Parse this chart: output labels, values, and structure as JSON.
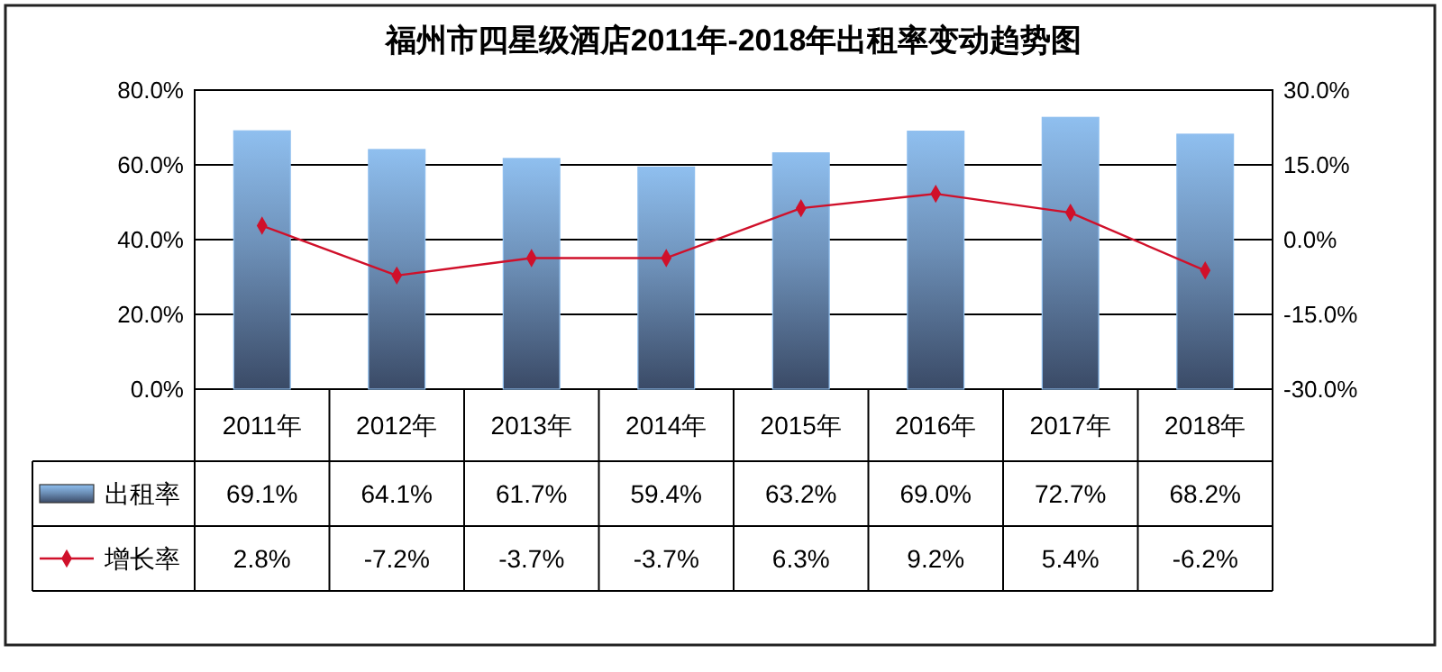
{
  "chart_data": {
    "type": "bar",
    "title": "福州市四星级酒店2011年-2018年出租率变动趋势图",
    "categories": [
      "2011年",
      "2012年",
      "2013年",
      "2014年",
      "2015年",
      "2016年",
      "2017年",
      "2018年"
    ],
    "series": [
      {
        "name": "出租率",
        "color": "#8fbfef",
        "values": [
          69.1,
          64.1,
          61.7,
          59.4,
          63.2,
          69.0,
          72.7,
          68.2
        ],
        "value_labels": [
          "69.1%",
          "64.1%",
          "61.7%",
          "59.4%",
          "63.2%",
          "69.0%",
          "72.7%",
          "68.2%"
        ]
      },
      {
        "name": "增长率",
        "type": "line",
        "axis": "y2",
        "color": "#d0102a",
        "marker": "diamond",
        "values": [
          2.8,
          -7.2,
          -3.7,
          -3.7,
          6.3,
          9.2,
          5.4,
          -6.2
        ],
        "value_labels": [
          "2.8%",
          "-7.2%",
          "-3.7%",
          "-3.7%",
          "6.3%",
          "9.2%",
          "5.4%",
          "-6.2%"
        ]
      }
    ],
    "ylim": [
      0,
      80
    ],
    "yticks": [
      {
        "value": 0,
        "label": "0.0%"
      },
      {
        "value": 20,
        "label": "20.0%"
      },
      {
        "value": 40,
        "label": "40.0%"
      },
      {
        "value": 60,
        "label": "60.0%"
      },
      {
        "value": 80,
        "label": "80.0%"
      }
    ],
    "y2lim": [
      -30,
      30
    ],
    "y2ticks": [
      {
        "value": -30,
        "label": "-30.0%"
      },
      {
        "value": -15,
        "label": "-15.0%"
      },
      {
        "value": 0,
        "label": "0.0%"
      },
      {
        "value": 15,
        "label": "15.0%"
      },
      {
        "value": 30,
        "label": "30.0%"
      }
    ],
    "grid": "y",
    "legend": "bottom"
  }
}
